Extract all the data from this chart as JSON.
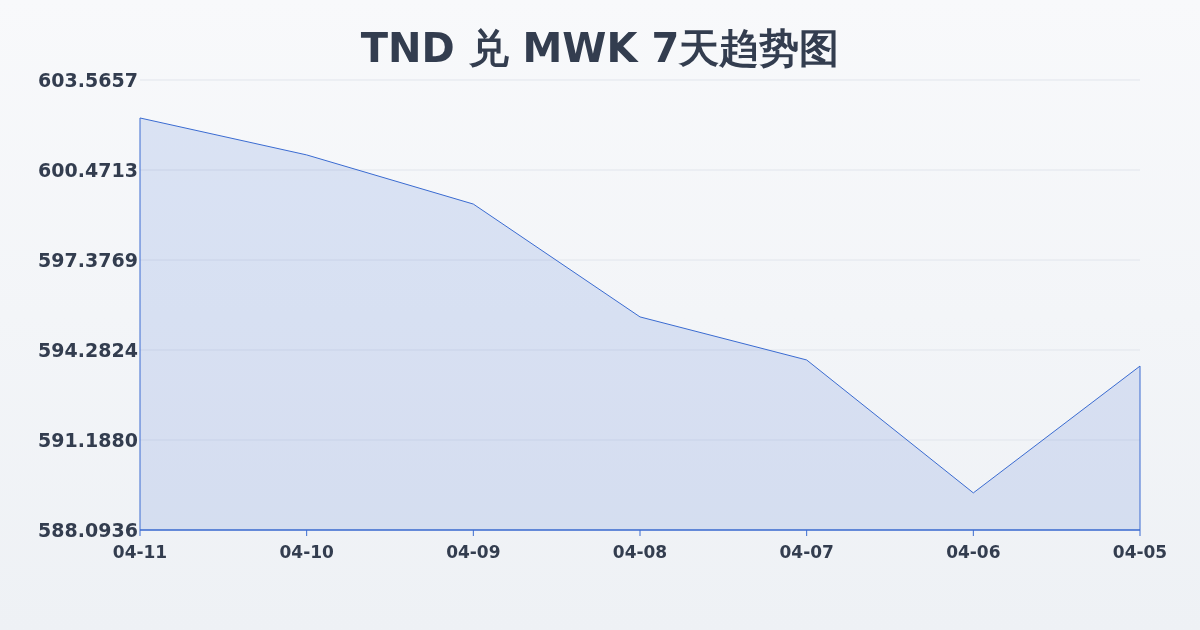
{
  "chart_data": {
    "type": "area",
    "title": "TND 兑 MWK 7天趋势图",
    "categories": [
      "04-11",
      "04-10",
      "04-09",
      "04-08",
      "04-07",
      "04-06",
      "04-05"
    ],
    "values": [
      602.26,
      600.99,
      599.3,
      595.42,
      593.94,
      589.37,
      593.73
    ],
    "color": "#3a6bd1",
    "ylim": [
      588.0936,
      603.5657
    ],
    "yticks": [
      {
        "value": 588.0936,
        "label": "588.0936"
      },
      {
        "value": 591.188,
        "label": "591.1880"
      },
      {
        "value": 594.2824,
        "label": "594.2824"
      },
      {
        "value": 597.3769,
        "label": "597.3769"
      },
      {
        "value": 600.4713,
        "label": "600.4713"
      },
      {
        "value": 603.5657,
        "label": "603.5657"
      }
    ],
    "grid": "y"
  }
}
